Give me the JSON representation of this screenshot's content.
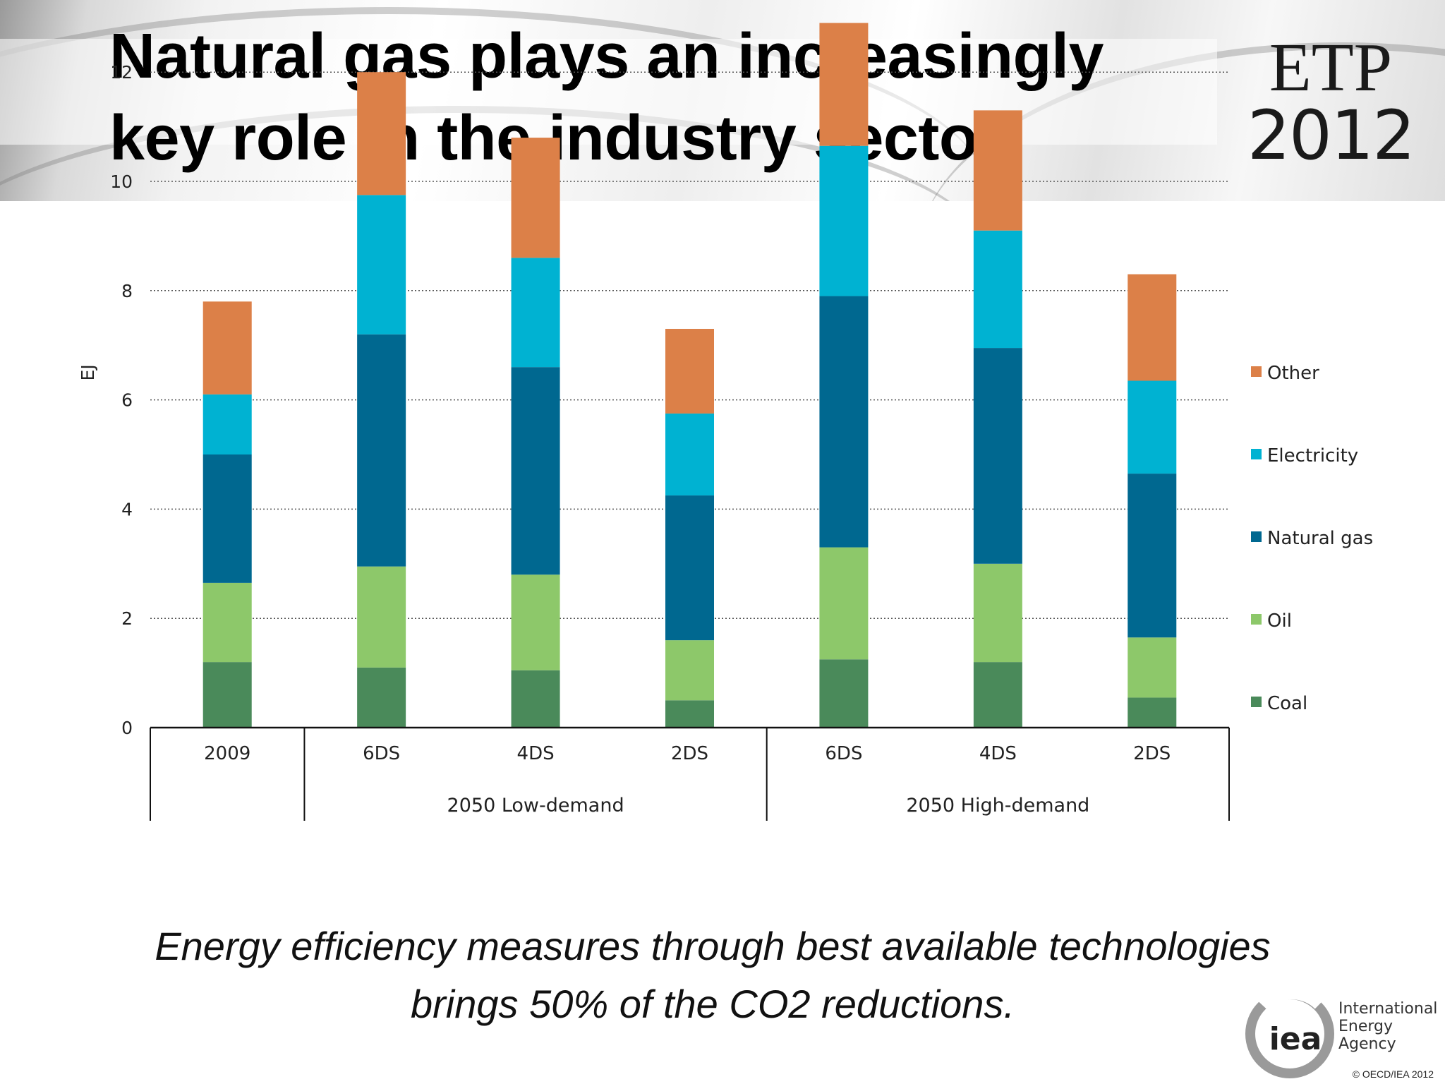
{
  "slide": {
    "title_line1": "Natural gas plays an increasingly",
    "title_line2": "key role in the industry sector",
    "logo_line1": "ETP",
    "logo_line2": "2012",
    "caption_line1": "Energy efficiency measures through best available technologies",
    "caption_line2": "brings 50% of the CO2 reductions.",
    "iea_mark": "iea",
    "iea_name_line1": "International",
    "iea_name_line2": "Energy Agency",
    "copyright": "© OECD/IEA 2012"
  },
  "chart_data": {
    "type": "bar",
    "stacked": true,
    "ylabel": "EJ",
    "ylim": [
      0,
      14
    ],
    "yticks": [
      0,
      2,
      4,
      6,
      8,
      10,
      12,
      14
    ],
    "grid": "horizontal dotted",
    "legend_position": "right",
    "categories": [
      "2009",
      "6DS",
      "4DS",
      "2DS",
      "6DS",
      "4DS",
      "2DS"
    ],
    "groups": [
      {
        "label": "2050 Low-demand",
        "categories": [
          1,
          2,
          3
        ]
      },
      {
        "label": "2050 High-demand",
        "categories": [
          4,
          5,
          6
        ]
      }
    ],
    "series": [
      {
        "name": "Coal",
        "color": "#4a8a5a",
        "values": [
          1.2,
          1.1,
          1.05,
          0.5,
          1.25,
          1.2,
          0.55
        ]
      },
      {
        "name": "Oil",
        "color": "#8dc86a",
        "values": [
          1.45,
          1.85,
          1.75,
          1.1,
          2.05,
          1.8,
          1.1
        ]
      },
      {
        "name": "Natural gas",
        "color": "#006890",
        "values": [
          2.35,
          4.25,
          3.8,
          2.65,
          4.6,
          3.95,
          3.0
        ]
      },
      {
        "name": "Electricity",
        "color": "#00b2d2",
        "values": [
          1.1,
          2.55,
          2.0,
          1.5,
          2.75,
          2.15,
          1.7
        ]
      },
      {
        "name": "Other",
        "color": "#dc8048",
        "values": [
          1.7,
          2.25,
          2.2,
          1.55,
          2.25,
          2.2,
          1.95
        ]
      }
    ]
  }
}
